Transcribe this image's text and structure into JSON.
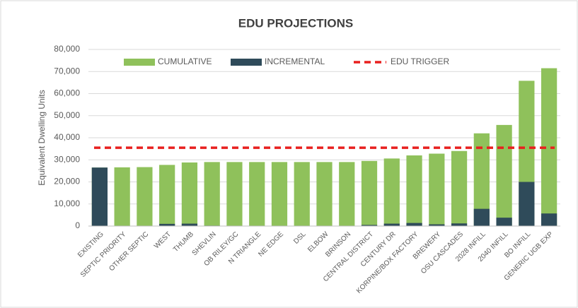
{
  "chart_data": {
    "type": "bar",
    "title": "EDU PROJECTIONS",
    "y_axis_label": "Equivalent Dwelling Units",
    "categories": [
      "EXISTING",
      "SEPTIC PRIORITY",
      "OTHER SEPTIC",
      "WEST",
      "THUMB",
      "SHEVLIN",
      "OB RILEY/GC",
      "N TRIANGLE",
      "NE EDGE",
      "DSL",
      "ELBOW",
      "BRINSON",
      "CENTRAL DISTRICT",
      "CENTURY DR",
      "KORPINE/BOX FACTORY",
      "BREWERY",
      "OSU CASCADES",
      "2028 INFILL",
      "2040 INFILL",
      "BO INFILL",
      "GENERIC UGB EXP"
    ],
    "series": [
      {
        "name": "CUMULATIVE",
        "color": "#8fc15b",
        "values": [
          26500,
          26600,
          26700,
          27700,
          28800,
          29000,
          29000,
          29000,
          29000,
          29000,
          29000,
          29000,
          29500,
          30600,
          32000,
          32800,
          34000,
          42000,
          45800,
          65800,
          71500
        ]
      },
      {
        "name": "INCREMENTAL",
        "color": "#2f4b5a",
        "values": [
          26500,
          100,
          100,
          1000,
          1100,
          200,
          0,
          0,
          0,
          0,
          0,
          0,
          500,
          1100,
          1400,
          800,
          1200,
          7800,
          3800,
          20000,
          5700
        ]
      }
    ],
    "trigger": {
      "name": "EDU TRIGGER",
      "color": "#e8201f",
      "value": 35500
    },
    "ylim": [
      0,
      80000
    ],
    "yticks": [
      0,
      {
        "value": 10000,
        "label": "10,000"
      },
      {
        "value": 20000,
        "label": "20,000"
      },
      {
        "value": 30000,
        "label": "30,000"
      },
      {
        "value": 40000,
        "label": "40,000"
      },
      {
        "value": 50000,
        "label": "50,000"
      },
      {
        "value": 60000,
        "label": "60,000"
      },
      {
        "value": 70000,
        "label": "70,000"
      },
      {
        "value": 80000,
        "label": "80,000"
      }
    ],
    "grid": true
  }
}
